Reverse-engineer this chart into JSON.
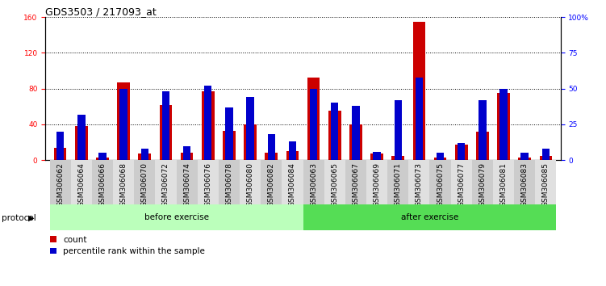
{
  "title": "GDS3503 / 217093_at",
  "samples": [
    "GSM306062",
    "GSM306064",
    "GSM306066",
    "GSM306068",
    "GSM306070",
    "GSM306072",
    "GSM306074",
    "GSM306076",
    "GSM306078",
    "GSM306080",
    "GSM306082",
    "GSM306084",
    "GSM306063",
    "GSM306065",
    "GSM306067",
    "GSM306069",
    "GSM306071",
    "GSM306073",
    "GSM306075",
    "GSM306077",
    "GSM306079",
    "GSM306081",
    "GSM306083",
    "GSM306085"
  ],
  "count_values": [
    14,
    38,
    3,
    87,
    7,
    62,
    8,
    77,
    33,
    40,
    8,
    10,
    92,
    55,
    40,
    7,
    5,
    155,
    3,
    17,
    32,
    75,
    3,
    5
  ],
  "percentile_values": [
    20,
    32,
    5,
    50,
    8,
    48,
    10,
    52,
    37,
    44,
    18,
    13,
    50,
    40,
    38,
    6,
    42,
    58,
    5,
    12,
    42,
    50,
    5,
    8
  ],
  "before_exercise_count": 12,
  "after_exercise_count": 12,
  "left_ylim": [
    0,
    160
  ],
  "right_ylim": [
    0,
    100
  ],
  "left_yticks": [
    0,
    40,
    80,
    120,
    160
  ],
  "right_yticks": [
    0,
    25,
    50,
    75,
    100
  ],
  "right_yticklabels": [
    "0",
    "25",
    "50",
    "75",
    "100%"
  ],
  "count_color": "#cc0000",
  "percentile_color": "#0000cc",
  "before_color": "#bbffbb",
  "after_color": "#55dd55",
  "protocol_label": "protocol",
  "before_label": "before exercise",
  "after_label": "after exercise",
  "legend_count": "count",
  "legend_percentile": "percentile rank within the sample",
  "bar_width": 0.6,
  "title_fontsize": 9,
  "tick_fontsize": 6.5,
  "label_fontsize": 7.5
}
